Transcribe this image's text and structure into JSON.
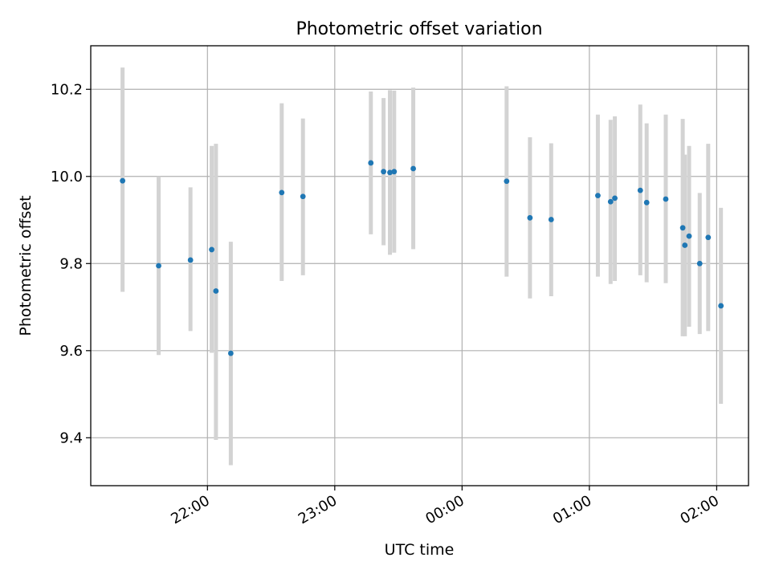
{
  "chart_data": {
    "type": "scatter",
    "title": "Photometric offset variation",
    "xlabel": "UTC time",
    "ylabel": "Photometric offset",
    "x_unit": "time (HH:MM, UTC)",
    "xlim": [
      "21:05",
      "02:15"
    ],
    "ylim": [
      9.29,
      10.3
    ],
    "x_ticks": [
      "22:00",
      "23:00",
      "00:00",
      "01:00",
      "02:00"
    ],
    "y_ticks": [
      "9.4",
      "9.6",
      "9.8",
      "10.0",
      "10.2"
    ],
    "y_tick_values": [
      9.4,
      9.6,
      9.8,
      10.0,
      10.2
    ],
    "grid": true,
    "marker_color": "#1f77b4",
    "errorbar_color": "#d3d3d3",
    "points": [
      {
        "t": "21:20",
        "y": 9.99,
        "lo": 9.735,
        "hi": 10.25
      },
      {
        "t": "21:37",
        "y": 9.795,
        "lo": 9.59,
        "hi": 10.0
      },
      {
        "t": "21:52",
        "y": 9.808,
        "lo": 9.645,
        "hi": 9.975
      },
      {
        "t": "22:02",
        "y": 9.832,
        "lo": 9.595,
        "hi": 10.07
      },
      {
        "t": "22:04",
        "y": 9.737,
        "lo": 9.395,
        "hi": 10.075
      },
      {
        "t": "22:11",
        "y": 9.594,
        "lo": 9.337,
        "hi": 9.85
      },
      {
        "t": "22:35",
        "y": 9.963,
        "lo": 9.76,
        "hi": 10.168
      },
      {
        "t": "22:45",
        "y": 9.954,
        "lo": 9.773,
        "hi": 10.133
      },
      {
        "t": "23:17",
        "y": 10.031,
        "lo": 9.867,
        "hi": 10.195
      },
      {
        "t": "23:23",
        "y": 10.011,
        "lo": 9.842,
        "hi": 10.18
      },
      {
        "t": "23:26",
        "y": 10.009,
        "lo": 9.82,
        "hi": 10.198
      },
      {
        "t": "23:28",
        "y": 10.011,
        "lo": 9.825,
        "hi": 10.197
      },
      {
        "t": "23:37",
        "y": 10.018,
        "lo": 9.833,
        "hi": 10.204
      },
      {
        "t": "00:21",
        "y": 9.989,
        "lo": 9.77,
        "hi": 10.207
      },
      {
        "t": "00:32",
        "y": 9.905,
        "lo": 9.72,
        "hi": 10.09
      },
      {
        "t": "00:42",
        "y": 9.901,
        "lo": 9.725,
        "hi": 10.076
      },
      {
        "t": "01:04",
        "y": 9.956,
        "lo": 9.77,
        "hi": 10.142
      },
      {
        "t": "01:10",
        "y": 9.942,
        "lo": 9.753,
        "hi": 10.13
      },
      {
        "t": "01:12",
        "y": 9.95,
        "lo": 9.76,
        "hi": 10.138
      },
      {
        "t": "01:24",
        "y": 9.968,
        "lo": 9.773,
        "hi": 10.165
      },
      {
        "t": "01:27",
        "y": 9.94,
        "lo": 9.757,
        "hi": 10.122
      },
      {
        "t": "01:36",
        "y": 9.948,
        "lo": 9.755,
        "hi": 10.142
      },
      {
        "t": "01:44",
        "y": 9.882,
        "lo": 9.633,
        "hi": 10.132
      },
      {
        "t": "01:45",
        "y": 9.842,
        "lo": 9.633,
        "hi": 10.05
      },
      {
        "t": "01:47",
        "y": 9.863,
        "lo": 9.655,
        "hi": 10.07
      },
      {
        "t": "01:52",
        "y": 9.8,
        "lo": 9.638,
        "hi": 9.962
      },
      {
        "t": "01:56",
        "y": 9.86,
        "lo": 9.645,
        "hi": 10.075
      },
      {
        "t": "02:02",
        "y": 9.703,
        "lo": 9.478,
        "hi": 9.928
      }
    ]
  }
}
